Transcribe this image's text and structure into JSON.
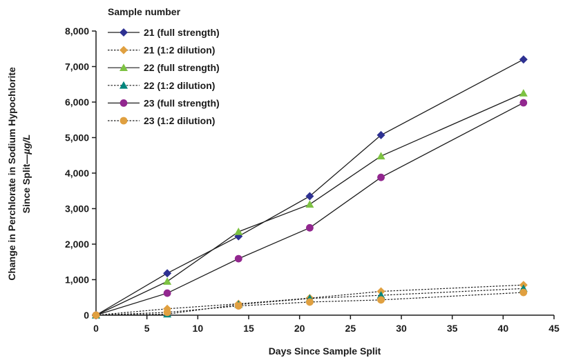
{
  "chart_data": {
    "type": "line",
    "xlabel": "Days Since Sample Split",
    "ylabel_line1": "Change in Perchlorate in Sodium Hypochlorite",
    "ylabel_line2_prefix": "Since Split—",
    "ylabel_line2_unit": "µg/L",
    "xlim": [
      0,
      45
    ],
    "ylim": [
      0,
      8000
    ],
    "xticks": [
      0,
      5,
      10,
      15,
      20,
      25,
      30,
      35,
      40,
      45
    ],
    "yticks": [
      0,
      1000,
      2000,
      3000,
      4000,
      5000,
      6000,
      7000,
      8000
    ],
    "ytick_labels": [
      "0",
      "1,000",
      "2,000",
      "3,000",
      "4,000",
      "5,000",
      "6,000",
      "7,000",
      "8,000"
    ],
    "legend_title": "Sample number",
    "legend_position": "top-left",
    "grid": false,
    "series": [
      {
        "name": "21 (full strength)",
        "marker": "diamond",
        "color": "#2e3192",
        "dash": false,
        "x": [
          0,
          7,
          14,
          21,
          28,
          42
        ],
        "y": [
          0,
          1180,
          2220,
          3350,
          5070,
          7200
        ]
      },
      {
        "name": "21 (1:2 dilution)",
        "marker": "diamond",
        "color": "#e0a040",
        "dash": true,
        "x": [
          0,
          7,
          14,
          21,
          28,
          42
        ],
        "y": [
          0,
          180,
          320,
          480,
          670,
          850
        ]
      },
      {
        "name": "22 (full strength)",
        "marker": "triangle",
        "color": "#7dc242",
        "dash": false,
        "x": [
          0,
          7,
          14,
          21,
          28,
          42
        ],
        "y": [
          0,
          950,
          2350,
          3120,
          4480,
          6250
        ]
      },
      {
        "name": "22 (1:2 dilution)",
        "marker": "triangle",
        "color": "#00857c",
        "dash": true,
        "x": [
          0,
          7,
          14,
          21,
          28,
          42
        ],
        "y": [
          0,
          30,
          300,
          470,
          560,
          750
        ]
      },
      {
        "name": "23 (full strength)",
        "marker": "circle",
        "color": "#92278f",
        "dash": false,
        "x": [
          0,
          7,
          14,
          21,
          28,
          42
        ],
        "y": [
          0,
          620,
          1590,
          2460,
          3880,
          5980
        ]
      },
      {
        "name": "23 (1:2 dilution)",
        "marker": "circle",
        "color": "#e0a040",
        "dash": true,
        "x": [
          0,
          7,
          14,
          21,
          28,
          42
        ],
        "y": [
          0,
          80,
          260,
          370,
          430,
          640
        ]
      }
    ]
  }
}
